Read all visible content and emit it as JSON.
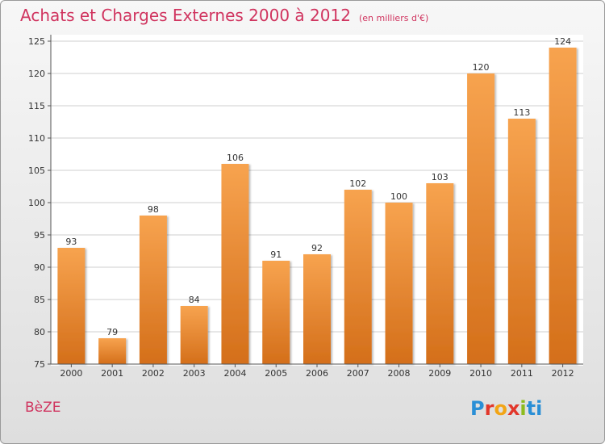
{
  "header": {
    "title": "Achats et Charges Externes 2000 à 2012",
    "subtitle": "(en milliers d'€)"
  },
  "footer": {
    "commune": "BèZE",
    "logo_text": "Proxiti"
  },
  "colors": {
    "title": "#d0345f",
    "bar_top": "#f7a34f",
    "bar_bottom": "#d46f1a"
  },
  "chart_data": {
    "type": "bar",
    "title": "Achats et Charges Externes 2000 à 2012",
    "subtitle": "(en milliers d'€)",
    "categories": [
      "2000",
      "2001",
      "2002",
      "2003",
      "2004",
      "2005",
      "2006",
      "2007",
      "2008",
      "2009",
      "2010",
      "2011",
      "2012"
    ],
    "values": [
      93,
      79,
      98,
      84,
      106,
      91,
      92,
      102,
      100,
      103,
      120,
      113,
      124
    ],
    "ylim": [
      75,
      125
    ],
    "yticks": [
      75,
      80,
      85,
      90,
      95,
      100,
      105,
      110,
      115,
      120,
      125
    ],
    "grid": true,
    "data_labels": true
  }
}
